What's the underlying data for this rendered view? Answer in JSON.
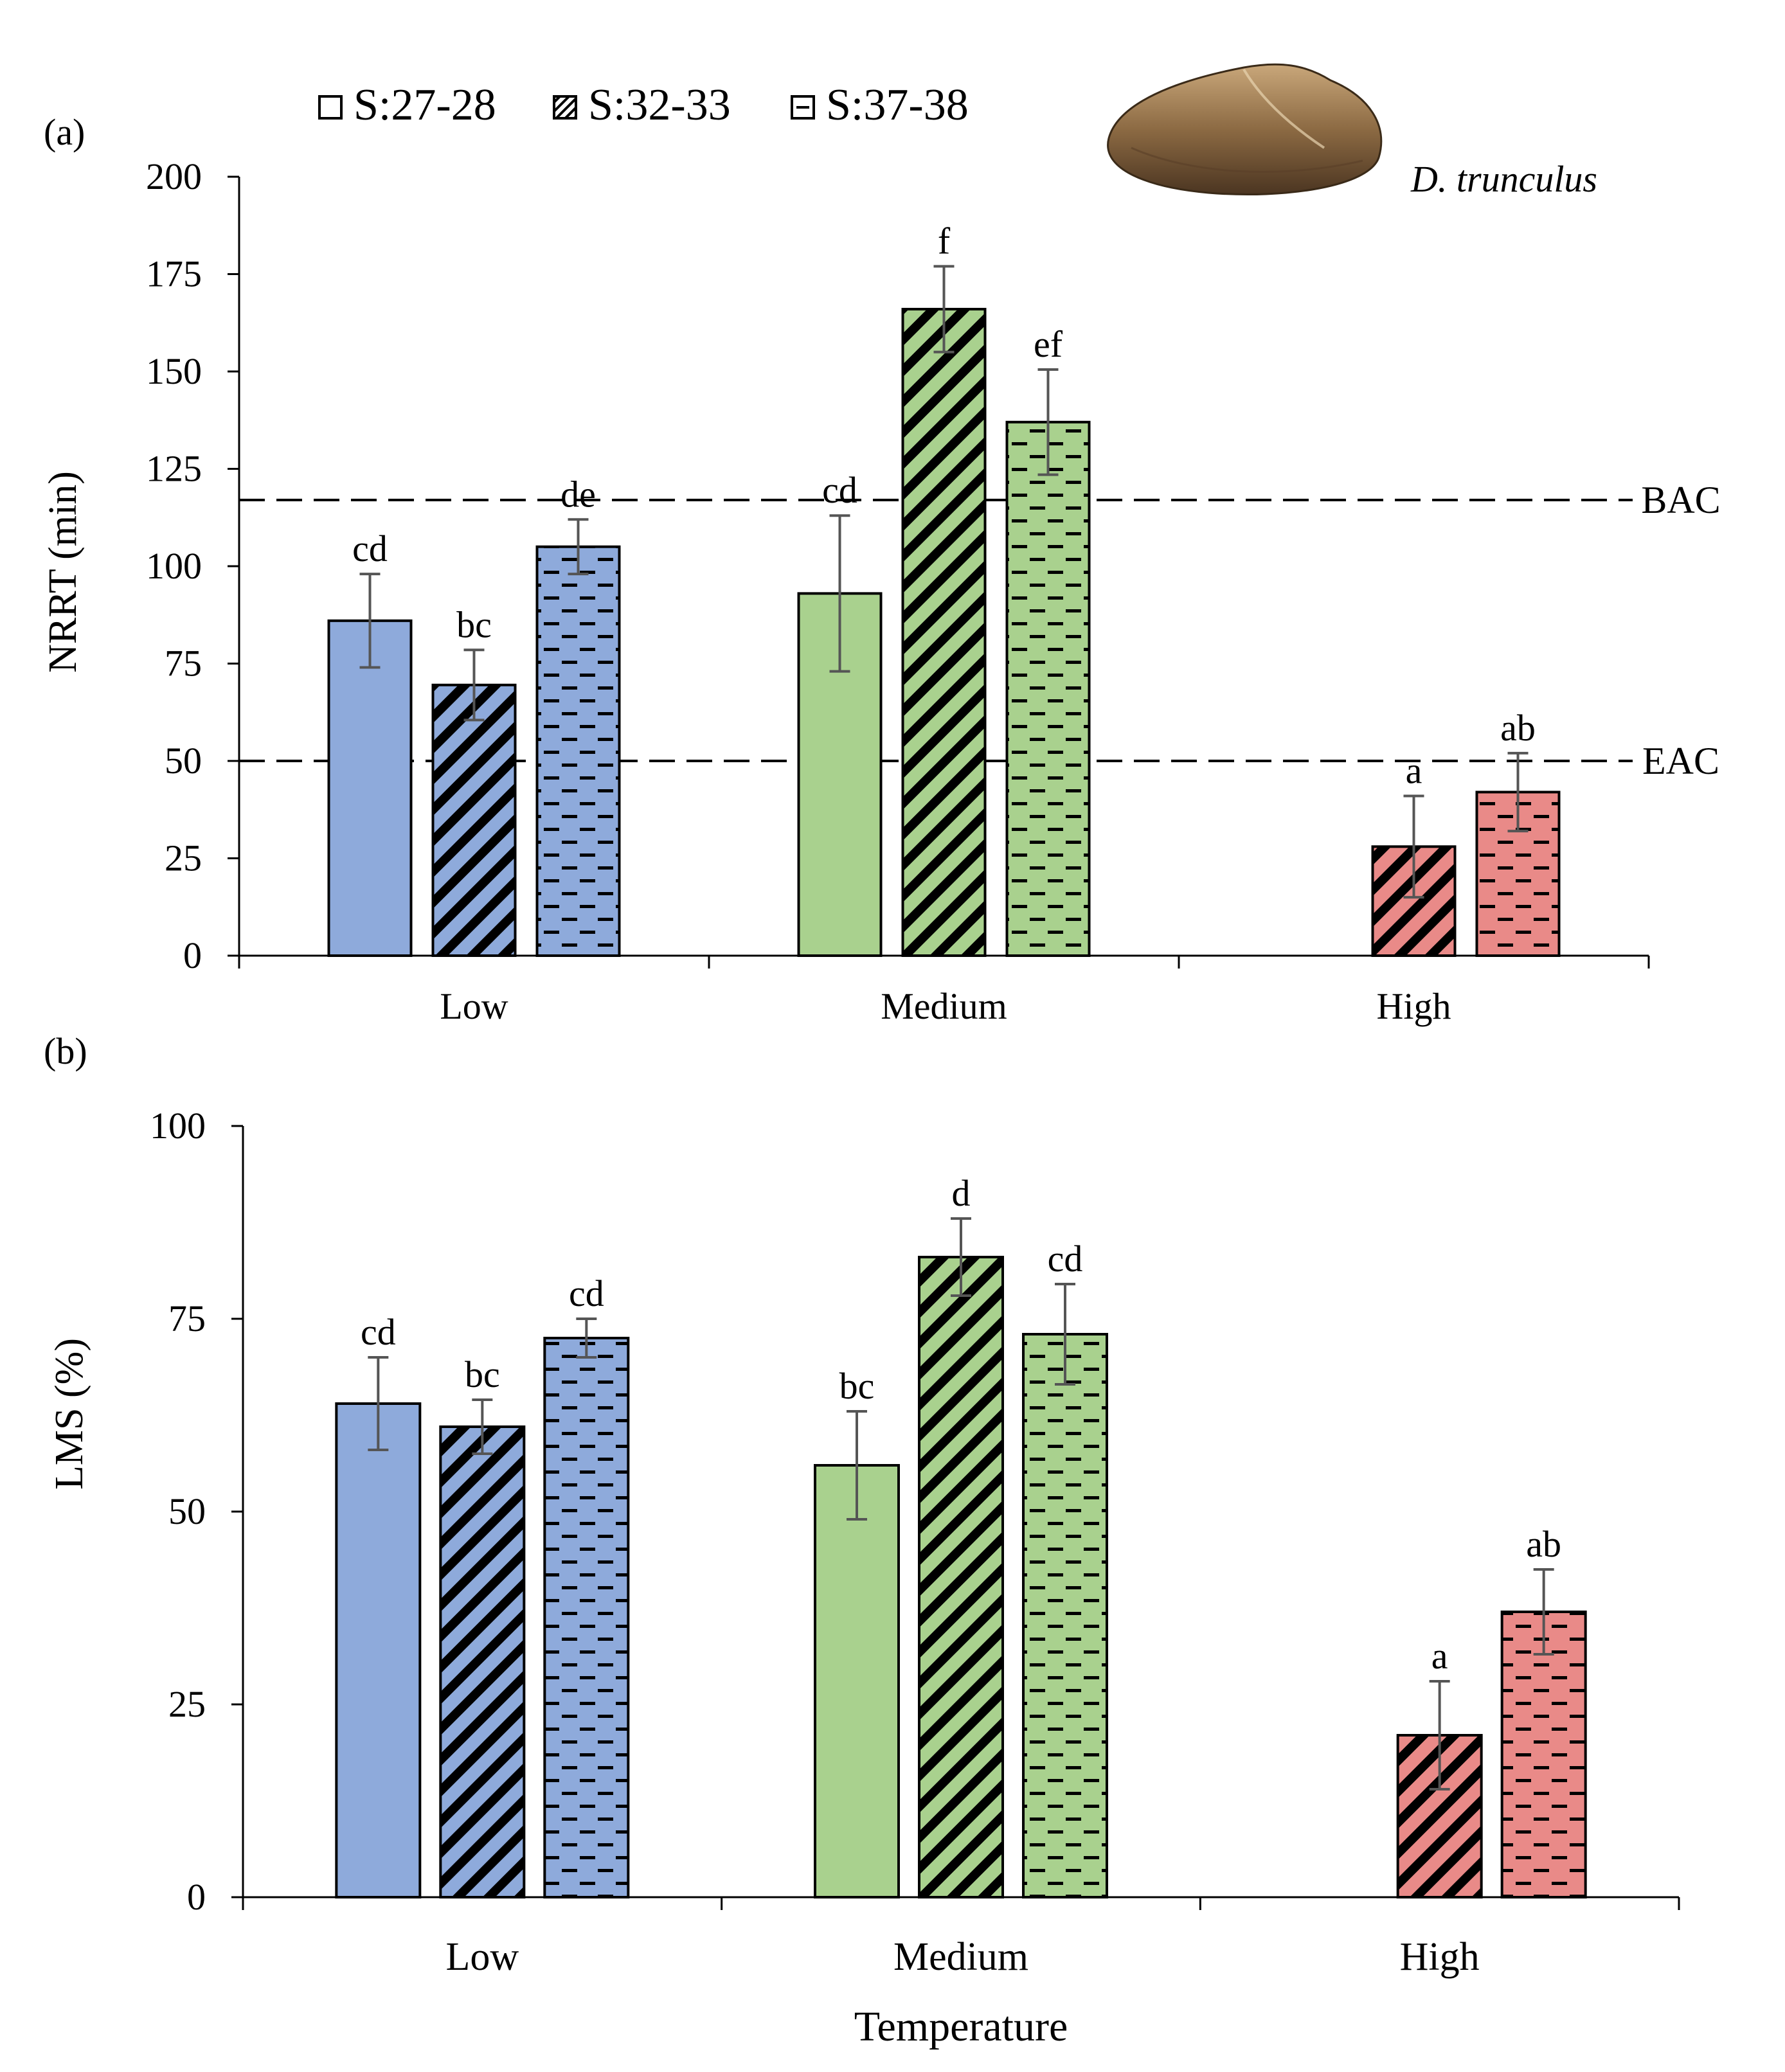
{
  "legend": {
    "items": [
      {
        "label": "S:27-28",
        "pattern": "solid"
      },
      {
        "label": "S:32-33",
        "pattern": "diagonal"
      },
      {
        "label": "S:37-38",
        "pattern": "dashed"
      }
    ]
  },
  "species_label": "D. trunculus",
  "species_icon": "clam-shell-icon",
  "colors": {
    "Low": "#8eaadb",
    "Medium": "#a9d18e",
    "High": "#e98a88",
    "axis": "#000000",
    "error_bar": "#555555"
  },
  "chart_data": [
    {
      "type": "bar",
      "panel_label": "(a)",
      "categories": [
        "Low",
        "Medium",
        "High"
      ],
      "series": [
        {
          "name": "S:27-28",
          "values": [
            86,
            93,
            null
          ],
          "errors": [
            12,
            20,
            null
          ],
          "letters": [
            "cd",
            "cd",
            ""
          ]
        },
        {
          "name": "S:32-33",
          "values": [
            69.5,
            166,
            28
          ],
          "errors": [
            9,
            11,
            13
          ],
          "letters": [
            "bc",
            "f",
            "a"
          ]
        },
        {
          "name": "S:37-38",
          "values": [
            105,
            137,
            42
          ],
          "errors": [
            7,
            13.5,
            10
          ],
          "letters": [
            "de",
            "ef",
            "ab"
          ]
        }
      ],
      "xlabel": "",
      "ylabel": "NRRT (min)",
      "ylim": [
        0,
        200
      ],
      "yticks": [
        0,
        25,
        50,
        75,
        100,
        125,
        150,
        175,
        200
      ],
      "reference_lines": [
        {
          "label": "BAC",
          "value": 117
        },
        {
          "label": "EAC",
          "value": 50
        }
      ],
      "grid": false
    },
    {
      "type": "bar",
      "panel_label": "(b)",
      "categories": [
        "Low",
        "Medium",
        "High"
      ],
      "series": [
        {
          "name": "S:27-28",
          "values": [
            64,
            56,
            null
          ],
          "errors": [
            6,
            7,
            null
          ],
          "letters": [
            "cd",
            "bc",
            ""
          ]
        },
        {
          "name": "S:32-33",
          "values": [
            61,
            83,
            21
          ],
          "errors": [
            3.5,
            5,
            7
          ],
          "letters": [
            "bc",
            "d",
            "a"
          ]
        },
        {
          "name": "S:37-38",
          "values": [
            72.5,
            73,
            37
          ],
          "errors": [
            2.5,
            6.5,
            5.5
          ],
          "letters": [
            "cd",
            "cd",
            "ab"
          ]
        }
      ],
      "xlabel": "Temperature",
      "ylabel": "LMS (%)",
      "ylim": [
        0,
        100
      ],
      "yticks": [
        0,
        25,
        50,
        75,
        100
      ],
      "reference_lines": [],
      "grid": false
    }
  ]
}
